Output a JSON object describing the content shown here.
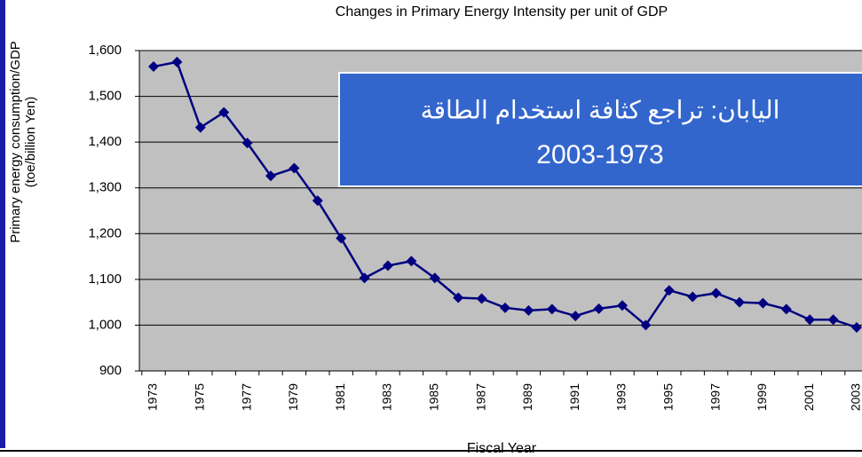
{
  "chart_data": {
    "type": "line",
    "title": "Changes in Primary Energy Intensity per unit of GDP",
    "y_label": [
      "Primary energy consumption/GDP",
      "(toe/billion Yen)"
    ],
    "x_label": "Fiscal Year",
    "annotations": [
      "اليابان: تراجع كثافة استخدام الطاقة",
      "2003-1973"
    ],
    "categories": [
      "1973",
      null,
      "1975",
      null,
      "1977",
      null,
      "1979",
      null,
      "1981",
      null,
      "1983",
      null,
      "1985",
      null,
      "1987",
      null,
      "1989",
      null,
      "1991",
      null,
      "1993",
      null,
      "1995",
      null,
      "1997",
      null,
      "1999",
      null,
      "2001",
      null,
      "2003"
    ],
    "series": [
      {
        "name": "Primary energy intensity",
        "color": "#000080",
        "values": [
          1565,
          1575,
          1432,
          1465,
          1398,
          1326,
          1343,
          1272,
          1190,
          1103,
          1130,
          1140,
          1103,
          1060,
          1058,
          1038,
          1032,
          1035,
          1020,
          1036,
          1043,
          1000,
          1076,
          1062,
          1070,
          1050,
          1048,
          1035,
          1012,
          1012,
          995
        ]
      }
    ],
    "ylim": [
      900,
      1600
    ],
    "yticks": [
      900,
      {
        "value": 1000,
        "label": "1,000"
      },
      {
        "value": 1100,
        "label": "1,100"
      },
      {
        "value": 1200,
        "label": "1,200"
      },
      {
        "value": 1300,
        "label": "1,300"
      },
      {
        "value": 1400,
        "label": "1,400"
      },
      {
        "value": 1500,
        "label": "1,500"
      },
      {
        "value": 1600,
        "label": "1,600"
      }
    ],
    "grid": true
  }
}
